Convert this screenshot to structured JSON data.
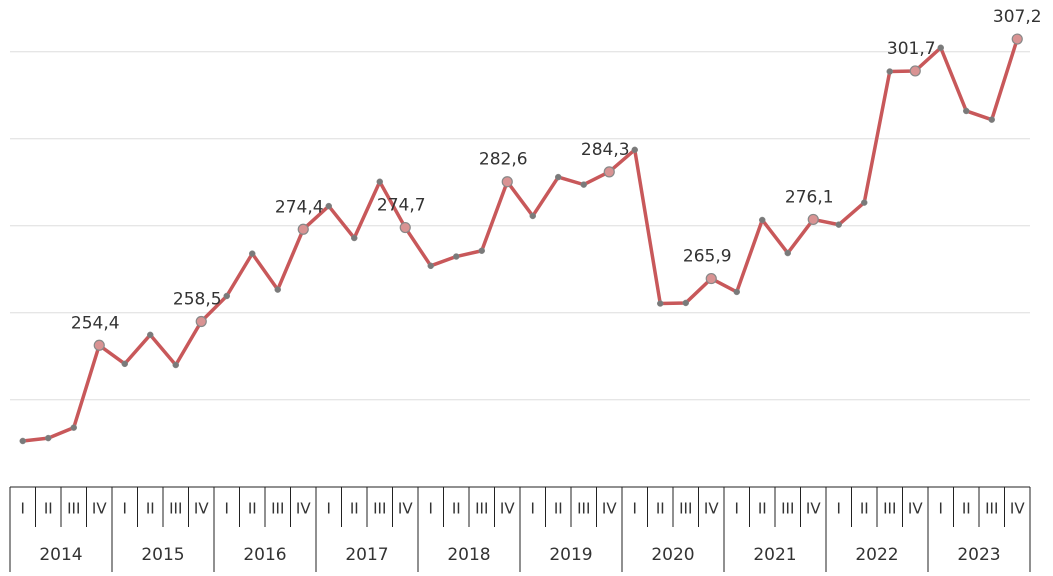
{
  "chart_data": {
    "type": "line",
    "categories": [
      "I",
      "II",
      "III",
      "IV",
      "I",
      "II",
      "III",
      "IV",
      "I",
      "II",
      "III",
      "IV",
      "I",
      "II",
      "III",
      "IV",
      "I",
      "II",
      "III",
      "IV",
      "I",
      "II",
      "III",
      "IV",
      "I",
      "II",
      "III",
      "IV",
      "I",
      "II",
      "III",
      "IV",
      "I",
      "II",
      "III",
      "IV",
      "I",
      "II",
      "III",
      "IV"
    ],
    "year_groups": [
      "2014",
      "2015",
      "2016",
      "2017",
      "2018",
      "2019",
      "2020",
      "2021",
      "2022",
      "2023"
    ],
    "series": [
      {
        "color": "#c8585a",
        "values": [
          237.9,
          238.4,
          240.2,
          254.4,
          251.2,
          256.2,
          251.0,
          258.5,
          262.9,
          270.2,
          264.0,
          274.4,
          278.4,
          272.9,
          282.6,
          274.7,
          268.1,
          269.7,
          270.7,
          282.6,
          276.7,
          283.4,
          282.1,
          284.3,
          288.1,
          261.6,
          261.7,
          265.9,
          263.6,
          276.0,
          270.3,
          276.1,
          275.2,
          279.0,
          301.6,
          301.7,
          305.7,
          294.8,
          293.3,
          307.2
        ],
        "value_labels": [
          null,
          null,
          null,
          "254,4",
          null,
          null,
          null,
          "258,5",
          null,
          null,
          null,
          "274,4",
          null,
          null,
          null,
          "274,7",
          null,
          null,
          null,
          "282,6",
          null,
          null,
          null,
          "284,3",
          null,
          null,
          null,
          "265,9",
          null,
          null,
          null,
          "276,1",
          null,
          null,
          null,
          "301,7",
          null,
          null,
          null,
          "307,2"
        ]
      }
    ],
    "ylim": [
      236,
      311
    ],
    "yticks": [
      245,
      260,
      275,
      290,
      305
    ],
    "grid": true
  }
}
